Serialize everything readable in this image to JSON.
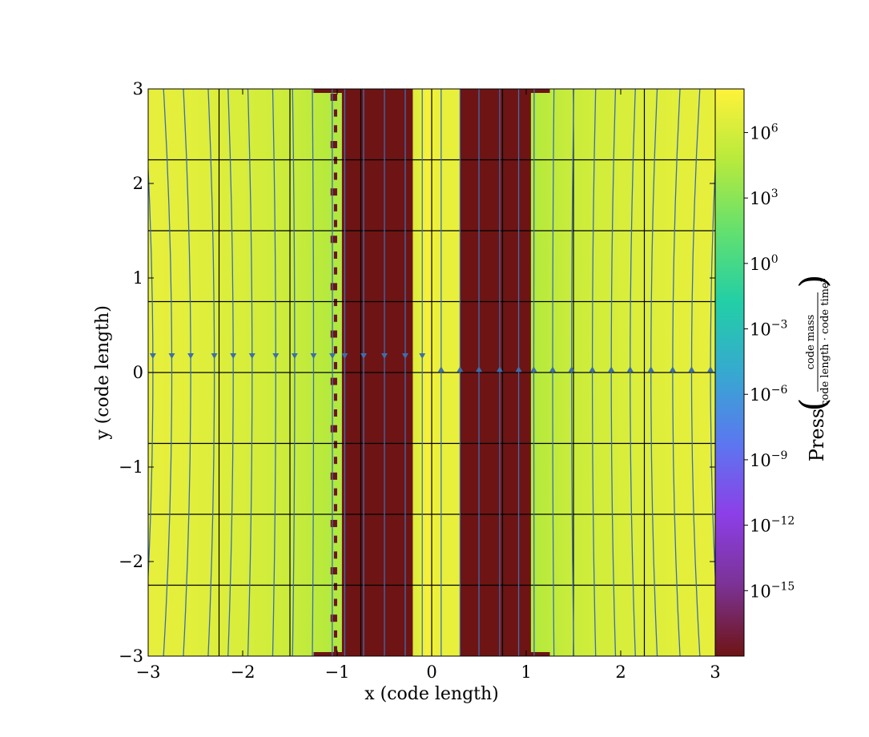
{
  "chart_data": {
    "type": "heatmap",
    "xlabel": "x  (code length)",
    "ylabel": "y  (code length)",
    "xlim": [
      -3,
      3
    ],
    "ylim": [
      -3,
      3
    ],
    "x_ticks": [
      -3,
      -2,
      -1,
      0,
      1,
      2,
      3
    ],
    "x_tick_labels": [
      "−3",
      "−2",
      "−1",
      "0",
      "1",
      "2",
      "3"
    ],
    "y_ticks": [
      -3,
      -2,
      -1,
      0,
      1,
      2,
      3
    ],
    "y_tick_labels": [
      "−3",
      "−2",
      "−1",
      "0",
      "1",
      "2",
      "3"
    ],
    "grid": false,
    "block_boundaries_x": [
      -2.25,
      -1.5,
      -0.75,
      0,
      0.75,
      1.5,
      2.25
    ],
    "block_boundaries_y": [
      -2.25,
      -1.5,
      -0.75,
      0,
      0.75,
      1.5,
      2.25
    ],
    "colorbar": {
      "label": "Press",
      "unit_numerator": "code mass",
      "unit_denominator": "code length · code time²",
      "scale": "log",
      "range": [
        1e-18,
        100000000.0
      ],
      "ticks": [
        {
          "value_exp": 6,
          "base": "10",
          "exp": "6"
        },
        {
          "value_exp": 3,
          "base": "10",
          "exp": "3"
        },
        {
          "value_exp": 0,
          "base": "10",
          "exp": "0"
        },
        {
          "value_exp": -3,
          "base": "10",
          "exp": "−3"
        },
        {
          "value_exp": -6,
          "base": "10",
          "exp": "−6"
        },
        {
          "value_exp": -9,
          "base": "10",
          "exp": "−9"
        },
        {
          "value_exp": -12,
          "base": "10",
          "exp": "−12"
        },
        {
          "value_exp": -15,
          "base": "10",
          "exp": "−15"
        }
      ],
      "colormap": [
        "#6e1414",
        "#7b3294",
        "#8c3fe8",
        "#5b77f0",
        "#36a9d0",
        "#22cfa6",
        "#64e06e",
        "#b8ea3c",
        "#fff23a"
      ]
    },
    "pressure_profile_x": {
      "description": "log10 pressure vs x, uniform in y",
      "x": [
        -3.0,
        -2.75,
        -2.5,
        -2.25,
        -2.0,
        -1.75,
        -1.5,
        -1.25,
        -1.05,
        -0.95,
        -0.7,
        -0.5,
        -0.3,
        -0.2,
        -0.05,
        0.1,
        0.3,
        0.5,
        0.7,
        0.95,
        1.05,
        1.25,
        1.5,
        1.75,
        2.0,
        2.25,
        2.5,
        2.75,
        3.0
      ],
      "log10_p": [
        6.9,
        6.8,
        6.6,
        6.4,
        6.2,
        5.9,
        5.6,
        5.0,
        4.5,
        -18,
        -18,
        -18,
        -18,
        6.2,
        7.6,
        7.0,
        -18,
        -18,
        -18,
        -18,
        4.5,
        5.0,
        5.6,
        5.9,
        6.2,
        6.4,
        6.6,
        6.8,
        6.9
      ]
    },
    "streamlines": {
      "color": "#3a6fb0",
      "x_positions": [
        -2.95,
        -2.75,
        -2.55,
        -2.3,
        -2.1,
        -1.9,
        -1.65,
        -1.45,
        -1.25,
        -1.05,
        -0.92,
        -0.72,
        -0.5,
        -0.28,
        -0.1,
        0.1,
        0.3,
        0.5,
        0.72,
        0.92,
        1.08,
        1.28,
        1.48,
        1.7,
        1.9,
        2.1,
        2.32,
        2.55,
        2.75,
        2.95
      ],
      "arrow_y_left": 0.17,
      "arrow_y_right": 0.04,
      "left_direction": "down",
      "right_direction": "up"
    }
  }
}
